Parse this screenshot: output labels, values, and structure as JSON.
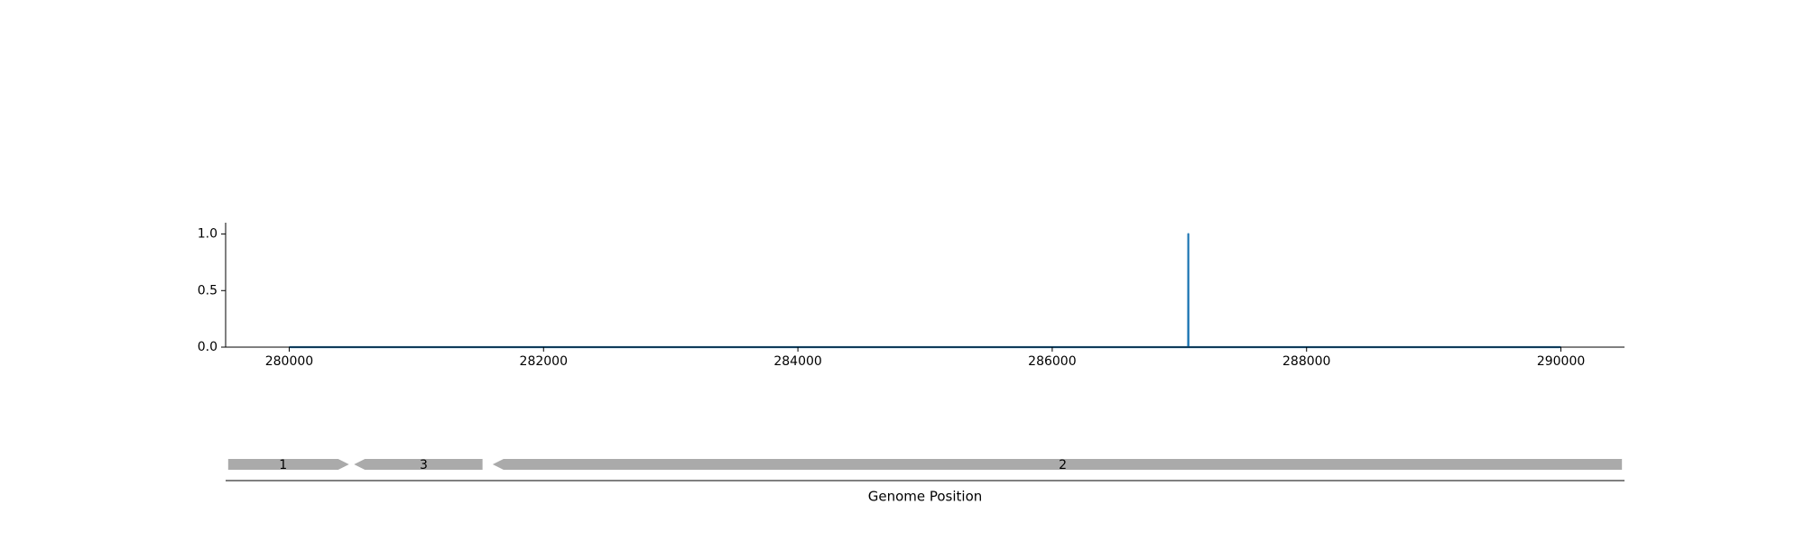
{
  "chart_data": [
    {
      "type": "line",
      "title": "",
      "xlabel": "",
      "ylabel": "",
      "xlim": [
        279500,
        290500
      ],
      "ylim": [
        0,
        1.1
      ],
      "x_ticks": [
        "280000",
        "282000",
        "284000",
        "286000",
        "288000",
        "290000"
      ],
      "y_ticks": [
        "0.0",
        "0.5",
        "1.0"
      ],
      "grid": false,
      "legend": "none",
      "color": "#1f77b4",
      "series": [
        {
          "x": [
            280000,
            287069,
            287070,
            287071,
            290000
          ],
          "y": [
            0,
            0,
            1.0,
            0,
            0
          ]
        }
      ]
    },
    {
      "type": "gene-track",
      "xlabel": "Genome Position",
      "xlim": [
        279500,
        290500
      ],
      "color": "#aaaaaa",
      "genes": [
        {
          "label": "1",
          "start": 279520,
          "end": 280470,
          "strand": "+"
        },
        {
          "label": "3",
          "start": 280510,
          "end": 281520,
          "strand": "-"
        },
        {
          "label": "2",
          "start": 281600,
          "end": 290480,
          "strand": "-"
        }
      ]
    }
  ]
}
